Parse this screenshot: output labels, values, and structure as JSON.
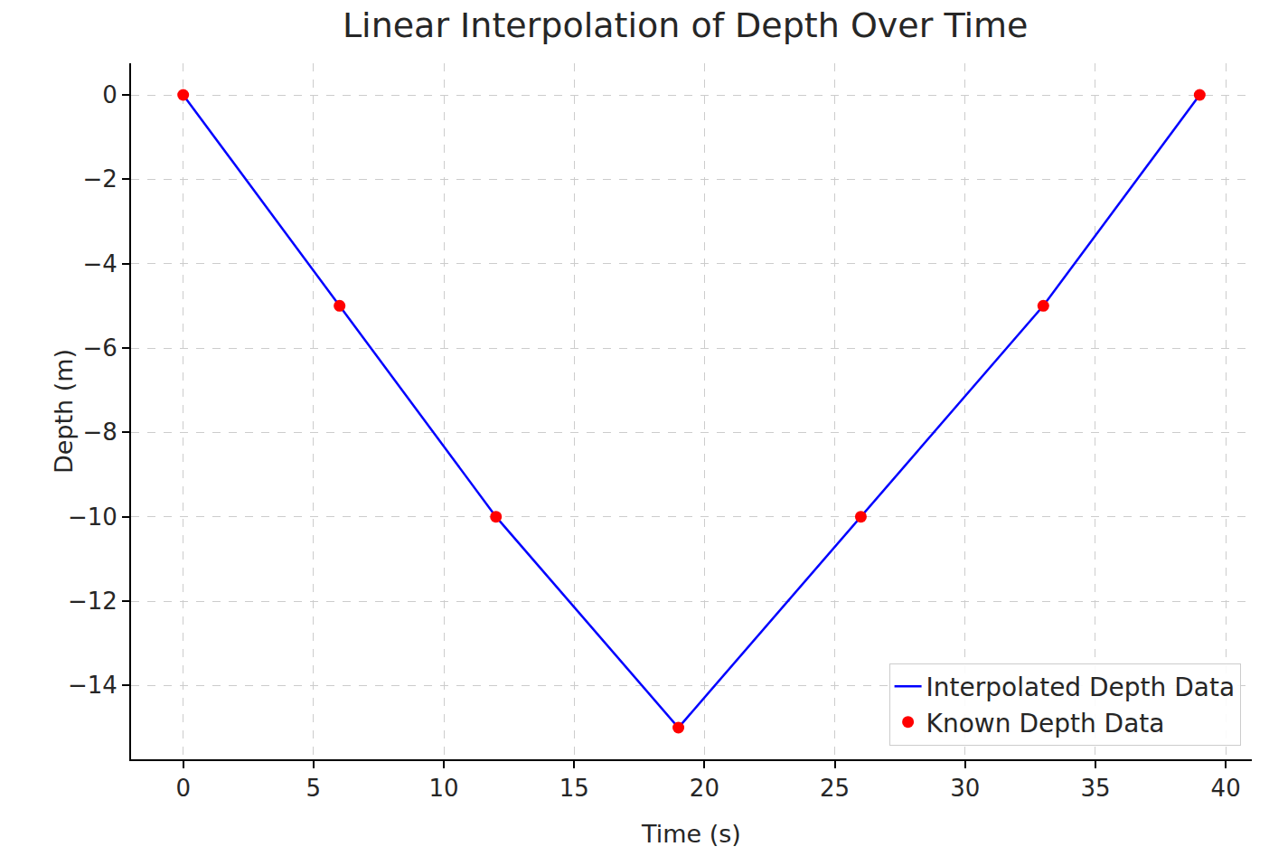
{
  "chart_data": {
    "type": "line",
    "title": "Linear Interpolation of Depth Over Time",
    "x_label": "Time (s)",
    "y_label": "Depth (m)",
    "x": [
      0,
      6,
      12,
      19,
      26,
      33,
      39
    ],
    "series": [
      {
        "name": "Interpolated Depth Data",
        "type": "line",
        "color": "#0000ff",
        "line_style": "solid",
        "values": [
          0,
          -5,
          -10,
          -15,
          -10,
          -5,
          0
        ]
      },
      {
        "name": "Known Depth Data",
        "type": "scatter",
        "color": "#ff0000",
        "marker": "circle",
        "values": [
          0,
          -5,
          -10,
          -15,
          -10,
          -5,
          0
        ]
      }
    ],
    "xlim": [
      -2,
      41
    ],
    "xticks": [
      0,
      5,
      10,
      15,
      20,
      25,
      30,
      35,
      40
    ],
    "ylim": [
      -15.75,
      0.75
    ],
    "yticks": [
      {
        "value": -14,
        "label": "−14"
      },
      {
        "value": -12,
        "label": "−12"
      },
      {
        "value": -10,
        "label": "−10"
      },
      {
        "value": -8,
        "label": "−8"
      },
      {
        "value": -6,
        "label": "−6"
      },
      {
        "value": -4,
        "label": "−4"
      },
      {
        "value": -2,
        "label": "−2"
      },
      0
    ],
    "grid": true,
    "legend": "lower right"
  }
}
